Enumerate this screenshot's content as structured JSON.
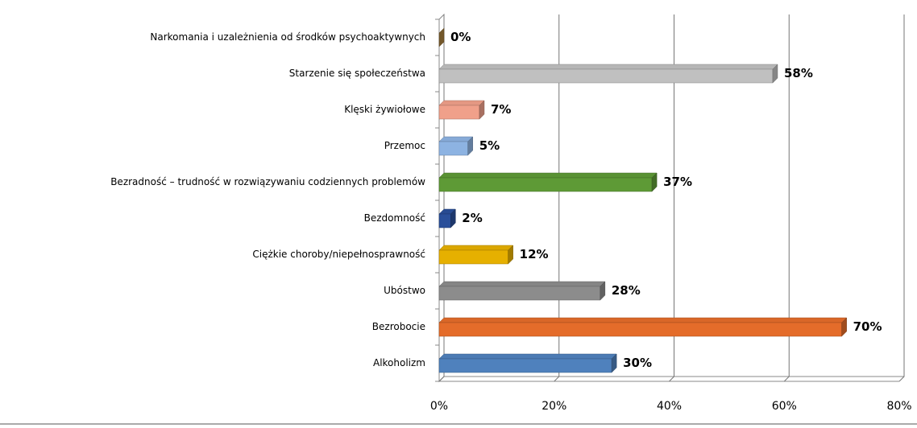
{
  "chart_data": {
    "type": "bar",
    "orientation": "horizontal",
    "categories": [
      "Alkoholizm",
      "Bezrobocie",
      "Ubóstwo",
      "Ciężkie choroby/niepełnosprawność",
      "Bezdomność",
      "Bezradność – trudność w rozwiązywaniu codziennych problemów",
      "Przemoc",
      "Klęski żywiołowe",
      "Starzenie się społeczeństwa",
      "Narkomania i uzależnienia od środków psychoaktywnych"
    ],
    "values": [
      30,
      70,
      28,
      12,
      2,
      37,
      5,
      7,
      58,
      0
    ],
    "value_labels": [
      "30%",
      "70%",
      "28%",
      "12%",
      "2%",
      "37%",
      "5%",
      "7%",
      "58%",
      "0%"
    ],
    "colors": [
      "#4f81bd",
      "#e46c2a",
      "#8c8c8c",
      "#e6b000",
      "#2a4f9a",
      "#5e9a36",
      "#8db3e2",
      "#f0a08a",
      "#c0c0c0",
      "#a57c3c"
    ],
    "xlim": [
      0,
      80
    ],
    "xticks": [
      {
        "value": 0,
        "label": "0%"
      },
      {
        "value": 20,
        "label": "20%"
      },
      {
        "value": 40,
        "label": "40%"
      },
      {
        "value": 60,
        "label": "60%"
      },
      {
        "value": 80,
        "label": "80%"
      }
    ],
    "grid": true
  }
}
